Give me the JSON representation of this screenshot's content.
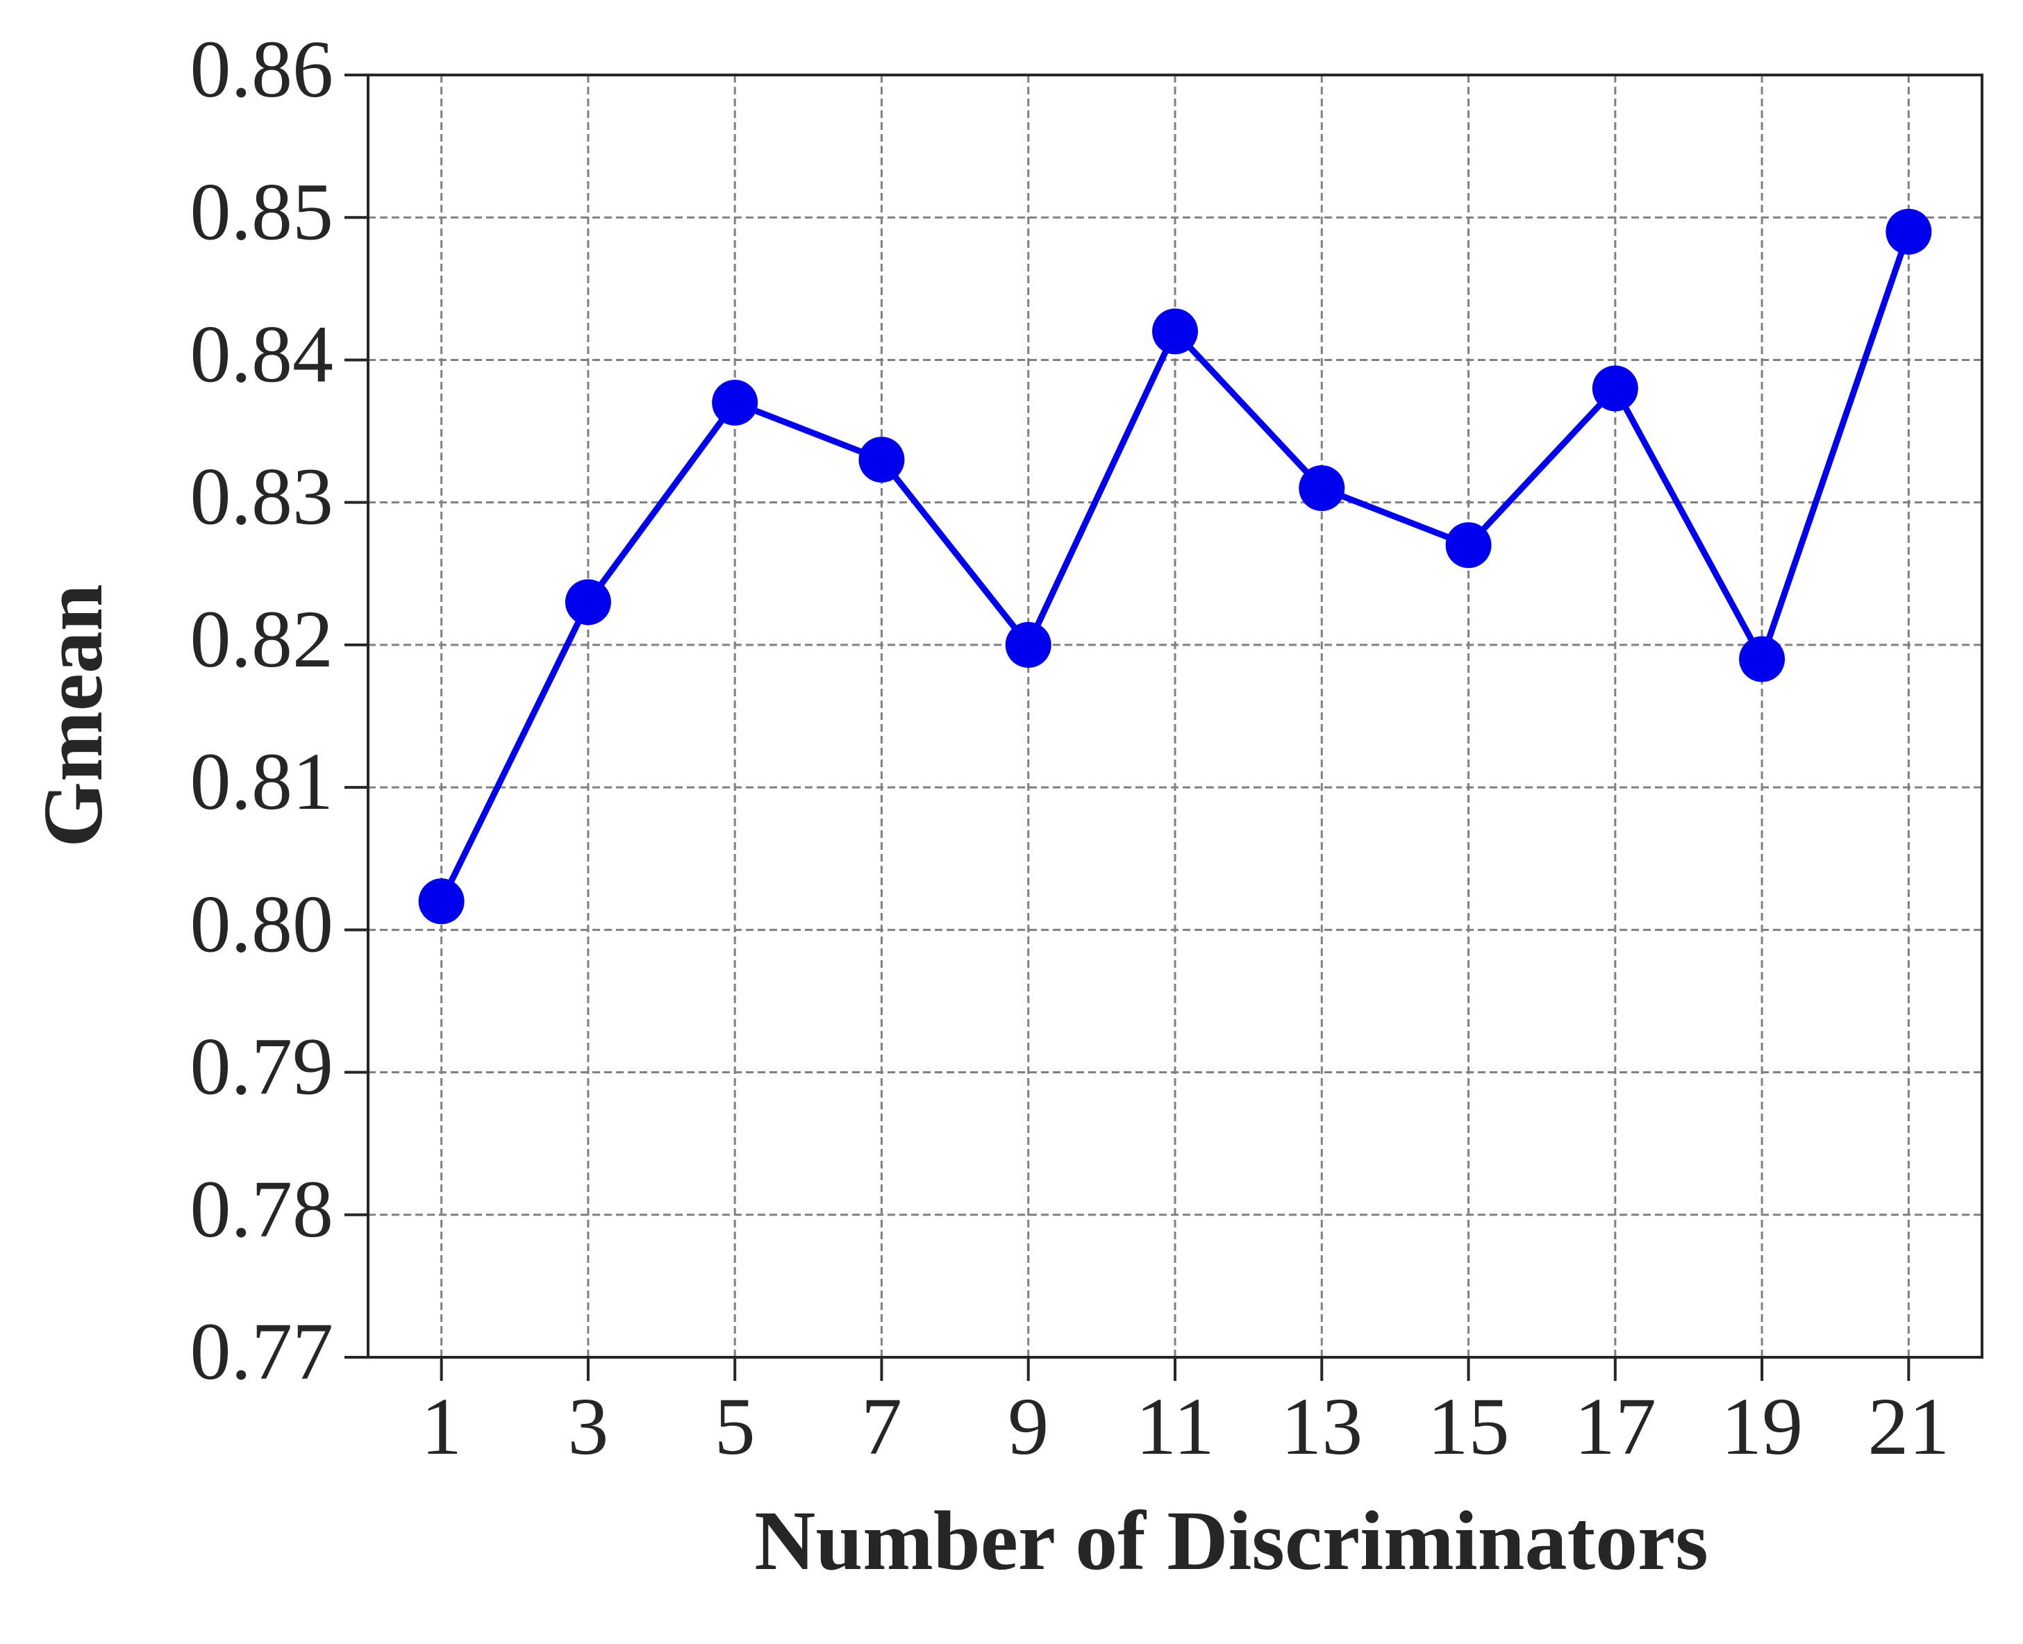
{
  "chart_data": {
    "type": "line",
    "xlabel": "Number of Discriminators",
    "ylabel": "Gmean",
    "x": [
      1,
      3,
      5,
      7,
      9,
      11,
      13,
      15,
      17,
      19,
      21
    ],
    "series": [
      {
        "name": "Gmean",
        "color": "#0000ee",
        "values": [
          0.802,
          0.823,
          0.837,
          0.833,
          0.82,
          0.842,
          0.831,
          0.827,
          0.838,
          0.819,
          0.849
        ]
      }
    ],
    "xlim": [
      0,
      22
    ],
    "xticks": [
      1,
      3,
      5,
      7,
      9,
      11,
      13,
      15,
      17,
      19,
      21
    ],
    "ylim": [
      0.77,
      0.86
    ],
    "yticks": [
      {
        "value": 0.77,
        "label": "0.77"
      },
      {
        "value": 0.78,
        "label": "0.78"
      },
      {
        "value": 0.79,
        "label": "0.79"
      },
      {
        "value": 0.8,
        "label": "0.80"
      },
      0.81,
      0.82,
      0.83,
      0.84,
      0.85,
      0.86
    ],
    "grid": true
  }
}
